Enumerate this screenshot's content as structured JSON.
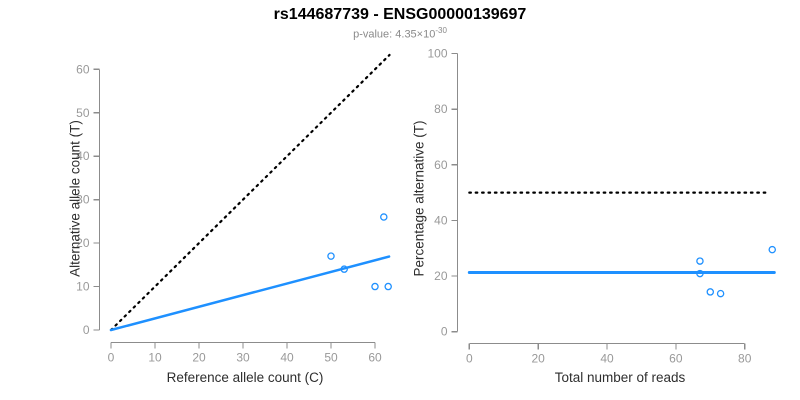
{
  "title": "rs144687739 - ENSG00000139697",
  "subtitle": {
    "prefix": "p-value: 4.35×10",
    "exponent": "-30"
  },
  "colors": {
    "accent_blue": "#1E90FF",
    "dotted_line": "#000000",
    "axis": "#8c8c8c",
    "tick_label": "#999999",
    "axis_label": "#2e2e2e",
    "title": "#000000",
    "subtitle": "#8a8a8a",
    "background": "#ffffff"
  },
  "chart_data": [
    {
      "type": "scatter",
      "panel": "left",
      "xlabel": "Reference allele count (C)",
      "ylabel": "Alternative allele count (T)",
      "xlim": [
        0,
        63
      ],
      "ylim": [
        0,
        63
      ],
      "grid": false,
      "xticks": [
        0,
        10,
        20,
        30,
        40,
        50,
        60
      ],
      "yticks": [
        0,
        10,
        20,
        30,
        40,
        50,
        60
      ],
      "points": [
        [
          50,
          17
        ],
        [
          53,
          14
        ],
        [
          60,
          10
        ],
        [
          62,
          26
        ],
        [
          63,
          10
        ]
      ],
      "lines": [
        {
          "name": "identity-line",
          "style": "dotted",
          "color": "#000000",
          "from": [
            0,
            0
          ],
          "to": [
            63.3,
            63.3
          ]
        },
        {
          "name": "fit-line",
          "style": "solid",
          "color": "#1E90FF",
          "from": [
            0,
            0
          ],
          "to": [
            63.2,
            16.9
          ]
        }
      ]
    },
    {
      "type": "scatter",
      "panel": "right",
      "xlabel": "Total number of reads",
      "ylabel": "Percentage alternative (T)",
      "xlim": [
        0,
        91
      ],
      "ylim": [
        0,
        100
      ],
      "grid": false,
      "xticks": [
        0,
        20,
        40,
        60,
        80
      ],
      "yticks": [
        0,
        20,
        40,
        60,
        80,
        100
      ],
      "points": [
        [
          67,
          25.4
        ],
        [
          67,
          20.9
        ],
        [
          70,
          14.3
        ],
        [
          73,
          13.7
        ],
        [
          88,
          29.5
        ]
      ],
      "lines": [
        {
          "name": "fifty-percent-line",
          "style": "dotted",
          "color": "#000000",
          "from": [
            0,
            50
          ],
          "to": [
            86.8,
            50
          ]
        },
        {
          "name": "mean-percentage-line",
          "style": "solid",
          "color": "#1E90FF",
          "from": [
            0,
            21.3
          ],
          "to": [
            88.6,
            21.3
          ]
        }
      ]
    }
  ]
}
